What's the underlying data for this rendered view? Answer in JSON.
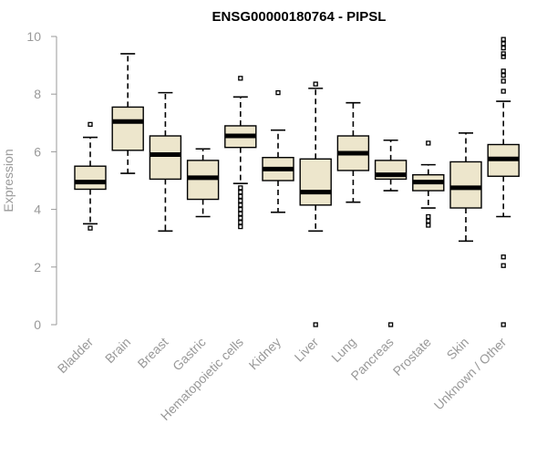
{
  "chart_data": {
    "type": "boxplot",
    "title": "ENSG00000180764 - PIPSL",
    "xlabel": "",
    "ylabel": "Expression",
    "ylim": [
      0,
      10
    ],
    "yticks": [
      0,
      2,
      4,
      6,
      8,
      10
    ],
    "box_fill": "#ede6cc",
    "box_stroke": "#000000",
    "axis_color": "#999999",
    "categories": [
      "Bladder",
      "Brain",
      "Breast",
      "Gastric",
      "Hematopoietic cells",
      "Kidney",
      "Liver",
      "Lung",
      "Pancreas",
      "Prostate",
      "Skin",
      "Unknown / Other"
    ],
    "boxes": [
      {
        "category": "Bladder",
        "whisker_low": 3.5,
        "q1": 4.7,
        "median": 4.95,
        "q3": 5.5,
        "whisker_high": 6.5,
        "outliers": [
          3.35,
          6.95
        ]
      },
      {
        "category": "Brain",
        "whisker_low": 5.25,
        "q1": 6.05,
        "median": 7.05,
        "q3": 7.55,
        "whisker_high": 9.4,
        "outliers": []
      },
      {
        "category": "Breast",
        "whisker_low": 3.25,
        "q1": 5.05,
        "median": 5.9,
        "q3": 6.55,
        "whisker_high": 8.05,
        "outliers": []
      },
      {
        "category": "Gastric",
        "whisker_low": 3.75,
        "q1": 4.35,
        "median": 5.1,
        "q3": 5.7,
        "whisker_high": 6.1,
        "outliers": []
      },
      {
        "category": "Hematopoietic cells",
        "whisker_low": 4.9,
        "q1": 6.15,
        "median": 6.55,
        "q3": 6.9,
        "whisker_high": 7.9,
        "outliers": [
          8.55,
          4.75,
          4.6,
          4.45,
          4.3,
          4.15,
          4.0,
          3.85,
          3.7,
          3.55,
          3.4
        ]
      },
      {
        "category": "Kidney",
        "whisker_low": 3.9,
        "q1": 5.0,
        "median": 5.4,
        "q3": 5.8,
        "whisker_high": 6.75,
        "outliers": [
          8.05
        ]
      },
      {
        "category": "Liver",
        "whisker_low": 3.25,
        "q1": 4.15,
        "median": 4.6,
        "q3": 5.75,
        "whisker_high": 8.2,
        "outliers": [
          8.35,
          0.0
        ]
      },
      {
        "category": "Lung",
        "whisker_low": 4.25,
        "q1": 5.35,
        "median": 5.95,
        "q3": 6.55,
        "whisker_high": 7.7,
        "outliers": []
      },
      {
        "category": "Pancreas",
        "whisker_low": 4.65,
        "q1": 5.05,
        "median": 5.2,
        "q3": 5.7,
        "whisker_high": 6.4,
        "outliers": [
          0.0
        ]
      },
      {
        "category": "Prostate",
        "whisker_low": 4.05,
        "q1": 4.65,
        "median": 4.95,
        "q3": 5.2,
        "whisker_high": 5.55,
        "outliers": [
          6.3,
          3.75,
          3.6,
          3.45
        ]
      },
      {
        "category": "Skin",
        "whisker_low": 2.9,
        "q1": 4.05,
        "median": 4.75,
        "q3": 5.65,
        "whisker_high": 6.65,
        "outliers": []
      },
      {
        "category": "Unknown / Other",
        "whisker_low": 3.75,
        "q1": 5.15,
        "median": 5.75,
        "q3": 6.25,
        "whisker_high": 7.75,
        "outliers": [
          9.9,
          9.75,
          9.6,
          9.4,
          9.3,
          8.8,
          8.65,
          8.45,
          8.1,
          2.35,
          2.05,
          0.0
        ]
      }
    ]
  }
}
